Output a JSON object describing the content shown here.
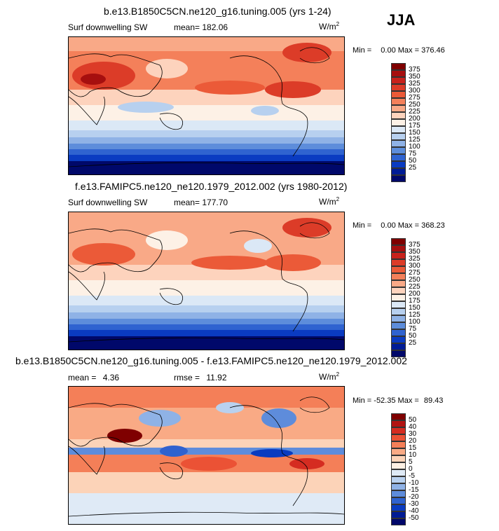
{
  "season": "JJA",
  "panels": [
    {
      "title": "b.e13.B1850C5CN.ne120_g16.tuning.005 (yrs 1-24)",
      "variable": "Surf downwelling SW",
      "stat1_label": "mean=",
      "stat1_value": "182.06",
      "stat2_label": "",
      "stat2_value": "",
      "units_base": "W/m",
      "units_exp": "2",
      "min_label": "Min =",
      "min_value": "0.00",
      "max_label": "Max =",
      "max_value": "376.46",
      "colorbar_labels": [
        "375",
        "350",
        "325",
        "300",
        "275",
        "250",
        "225",
        "200",
        "175",
        "150",
        "125",
        "100",
        "75",
        "50",
        "25"
      ]
    },
    {
      "title": "f.e13.FAMIPC5.ne120_ne120.1979_2012.002 (yrs 1980-2012)",
      "variable": "Surf downwelling SW",
      "stat1_label": "mean=",
      "stat1_value": "177.70",
      "stat2_label": "",
      "stat2_value": "",
      "units_base": "W/m",
      "units_exp": "2",
      "min_label": "Min =",
      "min_value": "0.00",
      "max_label": "Max =",
      "max_value": "368.23",
      "colorbar_labels": [
        "375",
        "350",
        "325",
        "300",
        "275",
        "250",
        "225",
        "200",
        "175",
        "150",
        "125",
        "100",
        "75",
        "50",
        "25"
      ]
    },
    {
      "title": "b.e13.B1850C5CN.ne120_g16.tuning.005 - f.e13.FAMIPC5.ne120_ne120.1979_2012.002",
      "variable": "",
      "stat1_label": "mean =",
      "stat1_value": "4.36",
      "stat2_label": "rmse =",
      "stat2_value": "11.92",
      "units_base": "W/m",
      "units_exp": "2",
      "min_label": "Min =",
      "min_value": "-52.35",
      "max_label": "Max =",
      "max_value": "89.43",
      "colorbar_labels": [
        "50",
        "40",
        "30",
        "20",
        "15",
        "10",
        "5",
        "0",
        "-5",
        "-10",
        "-15",
        "-20",
        "-30",
        "-40",
        "-50"
      ]
    }
  ],
  "colors": {
    "seq": [
      "#7f0000",
      "#a60f0f",
      "#c8221c",
      "#dc3c28",
      "#eb5a38",
      "#f4805a",
      "#f9a987",
      "#fdd3bd",
      "#fdf1e6",
      "#dbe8f6",
      "#b7d0ef",
      "#8fb2e6",
      "#5d8ddb",
      "#2f63d0",
      "#0a3bc1",
      "#001c96",
      "#00086a"
    ],
    "diff": [
      "#7f0000",
      "#b11312",
      "#d52c21",
      "#eb5235",
      "#f47f58",
      "#f9aa85",
      "#fcd3b8",
      "#fdf0e3",
      "#dfeaf6",
      "#b9d1ef",
      "#8fb2e6",
      "#5e8cdb",
      "#2f62cf",
      "#0a3bc0",
      "#001b94",
      "#00076a"
    ]
  }
}
